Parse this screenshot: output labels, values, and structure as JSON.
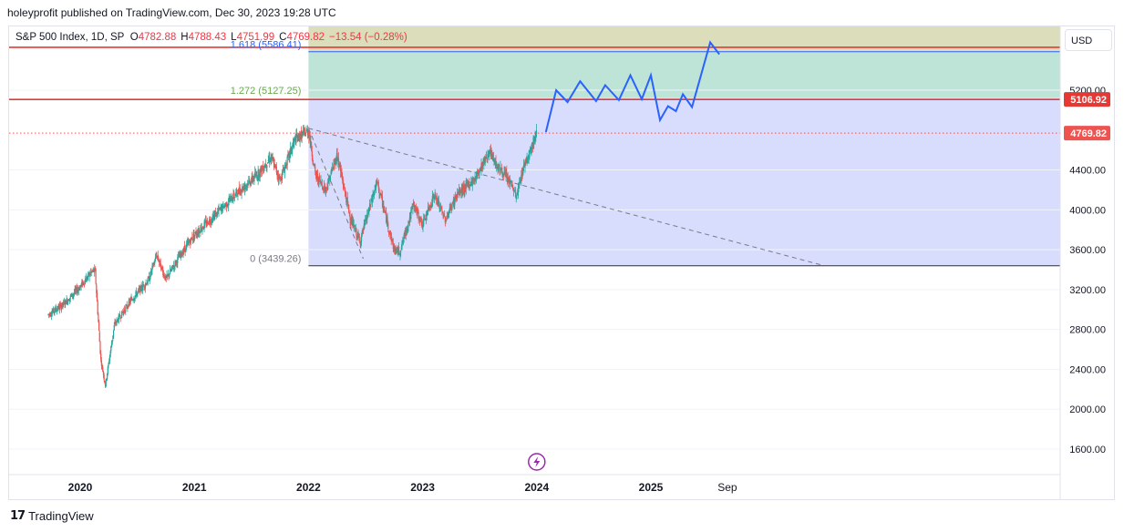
{
  "header": {
    "publish_line": "holeyprofit published on TradingView.com, Dec 30, 2023 19:28 UTC"
  },
  "legend": {
    "symbol": "S&P 500 Index, 1D, SP",
    "open_label": "O",
    "open": "4782.88",
    "high_label": "H",
    "high": "4788.43",
    "low_label": "L",
    "low": "4751.99",
    "close_label": "C",
    "close": "4769.82",
    "change": "−13.54 (−0.28%)"
  },
  "currency_button": "USD",
  "footer": {
    "logo": "17",
    "brand": "TradingView"
  },
  "colors": {
    "candle_up": "#26a69a",
    "candle_down": "#ef5350",
    "projection": "#2962ff",
    "fib_zone_1": "#d6dbfd",
    "fib_zone_2": "#b7e0d3",
    "fib_zone_3": "#d8d9b3",
    "resistance_line": "#e53935",
    "price_tag_resistance": "#e53935",
    "price_tag_last": "#ef5350"
  },
  "chart_data": {
    "type": "candlestick",
    "symbol": "S&P 500 Index",
    "interval": "1D",
    "x_axis": {
      "ticks": [
        "2020",
        "2021",
        "2022",
        "2023",
        "2024",
        "2025",
        "Sep"
      ]
    },
    "y_axis": {
      "ticks": [
        1600,
        2000,
        2400,
        2800,
        3200,
        3600,
        4000,
        4400,
        5200
      ],
      "tick_labels": [
        "1600.00",
        "2000.00",
        "2400.00",
        "2800.00",
        "3200.00",
        "3600.00",
        "4000.00",
        "4400.00",
        "5200.00"
      ],
      "range": [
        1450,
        5650
      ]
    },
    "price_path": [
      {
        "t": 2019.72,
        "p": 2950
      },
      {
        "t": 2019.85,
        "p": 3050
      },
      {
        "t": 2020.0,
        "p": 3230
      },
      {
        "t": 2020.1,
        "p": 3380
      },
      {
        "t": 2020.13,
        "p": 3390
      },
      {
        "t": 2020.18,
        "p": 2500
      },
      {
        "t": 2020.22,
        "p": 2240
      },
      {
        "t": 2020.3,
        "p": 2850
      },
      {
        "t": 2020.45,
        "p": 3100
      },
      {
        "t": 2020.6,
        "p": 3300
      },
      {
        "t": 2020.67,
        "p": 3550
      },
      {
        "t": 2020.75,
        "p": 3300
      },
      {
        "t": 2020.85,
        "p": 3500
      },
      {
        "t": 2021.0,
        "p": 3750
      },
      {
        "t": 2021.2,
        "p": 3970
      },
      {
        "t": 2021.4,
        "p": 4200
      },
      {
        "t": 2021.55,
        "p": 4350
      },
      {
        "t": 2021.67,
        "p": 4530
      },
      {
        "t": 2021.75,
        "p": 4300
      },
      {
        "t": 2021.88,
        "p": 4700
      },
      {
        "t": 2022.0,
        "p": 4796
      },
      {
        "t": 2022.06,
        "p": 4350
      },
      {
        "t": 2022.15,
        "p": 4200
      },
      {
        "t": 2022.25,
        "p": 4550
      },
      {
        "t": 2022.37,
        "p": 3900
      },
      {
        "t": 2022.45,
        "p": 3680
      },
      {
        "t": 2022.6,
        "p": 4280
      },
      {
        "t": 2022.75,
        "p": 3600
      },
      {
        "t": 2022.8,
        "p": 3580
      },
      {
        "t": 2022.92,
        "p": 4050
      },
      {
        "t": 2023.0,
        "p": 3850
      },
      {
        "t": 2023.1,
        "p": 4150
      },
      {
        "t": 2023.2,
        "p": 3900
      },
      {
        "t": 2023.3,
        "p": 4150
      },
      {
        "t": 2023.45,
        "p": 4300
      },
      {
        "t": 2023.58,
        "p": 4580
      },
      {
        "t": 2023.65,
        "p": 4450
      },
      {
        "t": 2023.78,
        "p": 4250
      },
      {
        "t": 2023.82,
        "p": 4120
      },
      {
        "t": 2023.88,
        "p": 4420
      },
      {
        "t": 2024.0,
        "p": 4770
      }
    ],
    "last_price": 4769.82,
    "fibonacci_extension": {
      "levels": [
        {
          "ratio": "0",
          "price": 3439.26,
          "label": "0 (3439.26)"
        },
        {
          "ratio": "1.272",
          "price": 5127.25,
          "label": "1.272 (5127.25)"
        },
        {
          "ratio": "1.618",
          "price": 5586.41,
          "label": "1.618 (5586.41)"
        }
      ]
    },
    "trend_lines": [
      {
        "name": "peak-to-low",
        "from": {
          "t": 2022.0,
          "p": 4818
        },
        "to": {
          "t": 2022.48,
          "p": 3510
        }
      },
      {
        "name": "peak-decline",
        "from": {
          "t": 2022.0,
          "p": 4818
        },
        "to": {
          "t": 2026.5,
          "p": 3445
        }
      }
    ],
    "horizontal_lines": [
      {
        "price": 5630,
        "color": "#e53935"
      },
      {
        "price": 5106.92,
        "color": "#e53935"
      }
    ],
    "price_tags": [
      {
        "price": 5106.92,
        "label": "5106.92",
        "kind": "resistance"
      },
      {
        "price": 4769.82,
        "label": "4769.82",
        "kind": "last"
      }
    ],
    "projection_path": [
      {
        "t": 2024.08,
        "p": 4780
      },
      {
        "t": 2024.17,
        "p": 5200
      },
      {
        "t": 2024.27,
        "p": 5080
      },
      {
        "t": 2024.38,
        "p": 5290
      },
      {
        "t": 2024.52,
        "p": 5090
      },
      {
        "t": 2024.6,
        "p": 5250
      },
      {
        "t": 2024.72,
        "p": 5100
      },
      {
        "t": 2024.82,
        "p": 5350
      },
      {
        "t": 2024.92,
        "p": 5110
      },
      {
        "t": 2025.0,
        "p": 5350
      },
      {
        "t": 2025.08,
        "p": 4900
      },
      {
        "t": 2025.15,
        "p": 5040
      },
      {
        "t": 2025.22,
        "p": 4990
      },
      {
        "t": 2025.28,
        "p": 5160
      },
      {
        "t": 2025.36,
        "p": 5030
      },
      {
        "t": 2025.52,
        "p": 5680
      },
      {
        "t": 2025.6,
        "p": 5560
      }
    ],
    "event_markers": [
      {
        "t": 2024.0,
        "icon": "lightning-icon"
      }
    ]
  }
}
